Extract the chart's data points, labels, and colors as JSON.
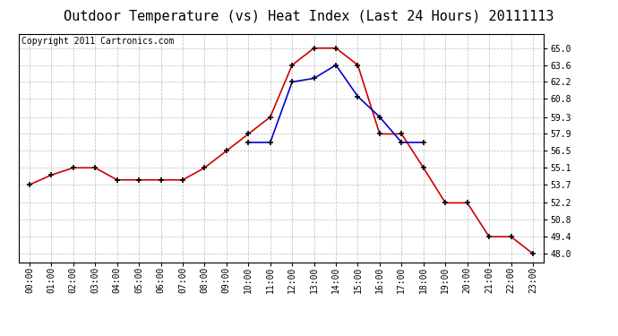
{
  "title": "Outdoor Temperature (vs) Heat Index (Last 24 Hours) 20111113",
  "copyright": "Copyright 2011 Cartronics.com",
  "background_color": "#ffffff",
  "plot_bg_color": "#ffffff",
  "grid_color": "#aaaaaa",
  "hours": [
    "00:00",
    "01:00",
    "02:00",
    "03:00",
    "04:00",
    "05:00",
    "06:00",
    "07:00",
    "08:00",
    "09:00",
    "10:00",
    "11:00",
    "12:00",
    "13:00",
    "14:00",
    "15:00",
    "16:00",
    "17:00",
    "18:00",
    "19:00",
    "20:00",
    "21:00",
    "22:00",
    "23:00"
  ],
  "temp": [
    53.7,
    54.5,
    55.1,
    55.1,
    54.1,
    54.1,
    54.1,
    54.1,
    55.1,
    56.5,
    57.9,
    59.3,
    63.6,
    65.0,
    65.0,
    63.6,
    57.9,
    57.9,
    55.1,
    52.2,
    52.2,
    49.4,
    49.4,
    48.0
  ],
  "heat_index": [
    null,
    null,
    null,
    null,
    null,
    null,
    null,
    null,
    null,
    null,
    57.2,
    57.2,
    62.2,
    62.5,
    63.6,
    61.0,
    59.3,
    57.2,
    57.2,
    null,
    null,
    null,
    null,
    null
  ],
  "temp_color": "#cc0000",
  "heat_color": "#0000cc",
  "marker": "+",
  "marker_size": 5,
  "marker_lw": 1.2,
  "ylim": [
    47.3,
    66.2
  ],
  "yticks": [
    48.0,
    49.4,
    50.8,
    52.2,
    53.7,
    55.1,
    56.5,
    57.9,
    59.3,
    60.8,
    62.2,
    63.6,
    65.0
  ],
  "title_fontsize": 11,
  "tick_fontsize": 7,
  "copyright_fontsize": 7,
  "line_width": 1.2
}
